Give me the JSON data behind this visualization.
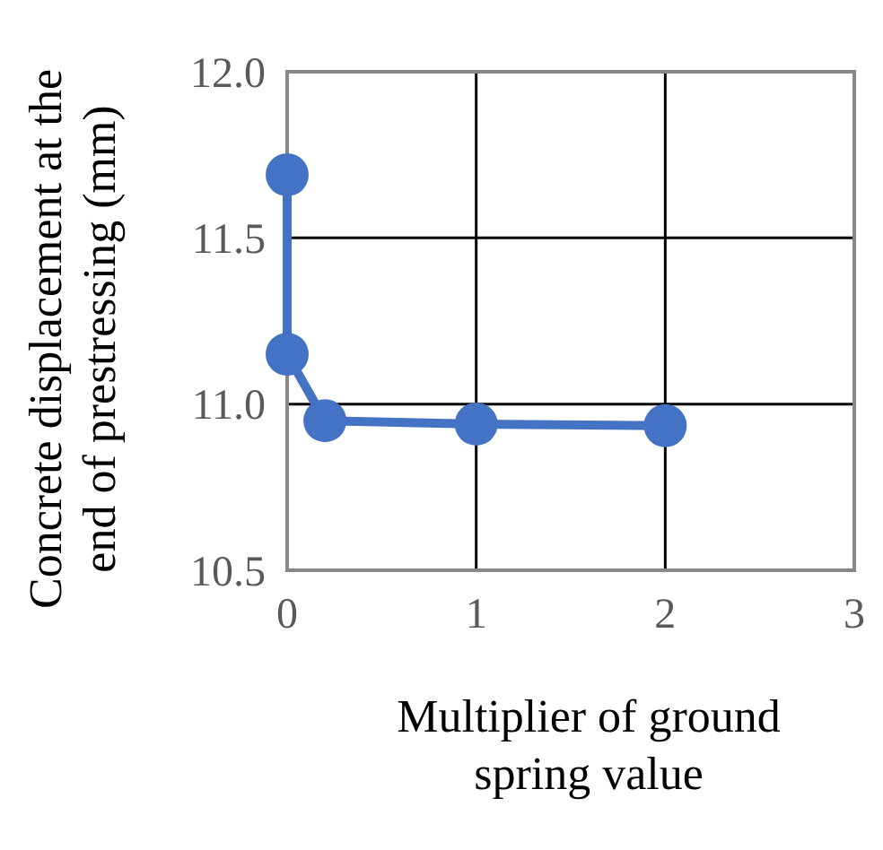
{
  "chart_data": {
    "type": "line",
    "xlabel": "Multiplier of ground spring value",
    "ylabel": "Concrete displacement at the end of prestressing (mm)",
    "x": [
      0,
      0,
      0.2,
      1,
      2
    ],
    "series": [
      {
        "color": "#4472c4",
        "values": [
          11.69,
          11.15,
          10.95,
          10.94,
          10.935
        ]
      }
    ],
    "xlim": [
      0,
      3
    ],
    "xticks": [
      0,
      1,
      2,
      3
    ],
    "ylim": [
      10.5,
      12
    ],
    "yticks": [
      {
        "value": 10.5,
        "label": "10.5"
      },
      {
        "value": 11,
        "label": "11.0"
      },
      {
        "value": 11.5,
        "label": "11.5"
      },
      {
        "value": 12,
        "label": "12.0"
      }
    ],
    "grid": true,
    "marker": "circle",
    "line_style": "solid"
  }
}
